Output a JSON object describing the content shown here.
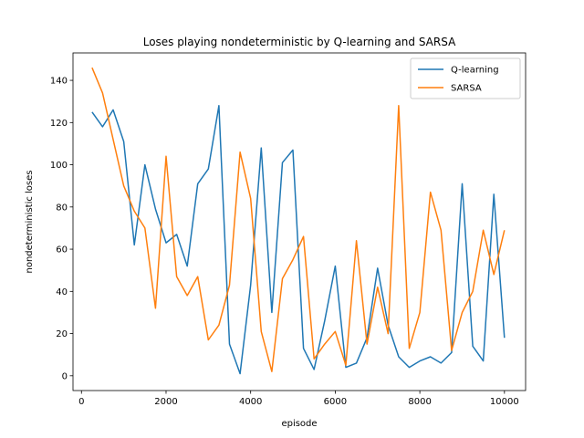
{
  "chart_data": {
    "type": "line",
    "title": "Loses playing nondeterministic by Q-learning and SARSA",
    "xlabel": "episode",
    "ylabel": "nondeterministic loses",
    "xlim": [
      -200,
      10500
    ],
    "ylim": [
      -7,
      153
    ],
    "xticks": [
      0,
      2000,
      4000,
      6000,
      8000,
      10000
    ],
    "yticks": [
      0,
      20,
      40,
      60,
      80,
      100,
      120,
      140
    ],
    "grid": false,
    "legend_position": "top-right",
    "x": [
      250,
      500,
      750,
      1000,
      1250,
      1500,
      1750,
      2000,
      2250,
      2500,
      2750,
      3000,
      3250,
      3500,
      3750,
      4000,
      4250,
      4500,
      4750,
      5000,
      5250,
      5500,
      5750,
      6000,
      6250,
      6500,
      6750,
      7000,
      7250,
      7500,
      7750,
      8000,
      8250,
      8500,
      8750,
      9000,
      9250,
      9500,
      9750,
      10000
    ],
    "series": [
      {
        "name": "Q-learning",
        "color": "#1f77b4",
        "values": [
          125,
          118,
          126,
          111,
          62,
          100,
          79,
          63,
          67,
          52,
          91,
          98,
          128,
          15,
          1,
          43,
          108,
          30,
          101,
          107,
          13,
          3,
          26,
          52,
          4,
          6,
          18,
          51,
          24,
          9,
          4,
          7,
          9,
          6,
          11,
          91,
          14,
          7,
          86,
          18
        ]
      },
      {
        "name": "SARSA",
        "color": "#ff7f0e",
        "values": [
          146,
          134,
          112,
          90,
          78,
          70,
          32,
          104,
          47,
          38,
          47,
          17,
          24,
          43,
          106,
          84,
          21,
          2,
          46,
          55,
          66,
          8,
          15,
          21,
          5,
          64,
          15,
          42,
          20,
          128,
          13,
          30,
          87,
          69,
          12,
          30,
          40,
          69,
          48,
          69
        ]
      }
    ]
  }
}
